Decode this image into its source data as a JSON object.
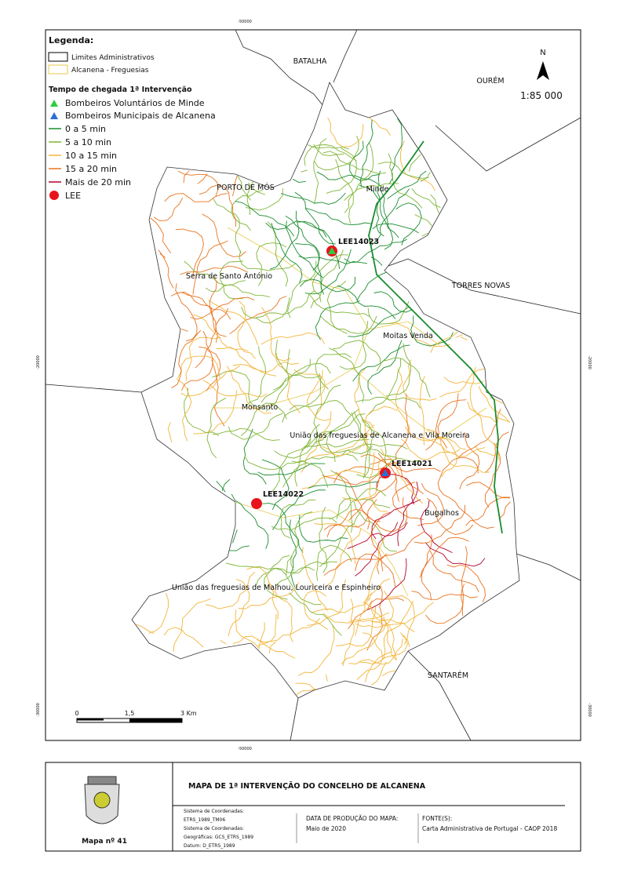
{
  "map": {
    "coordinates": {
      "top": "-50000",
      "bottom": "-50000",
      "left_upper": "-20000",
      "right_upper": "-20000",
      "left_lower": "-30000",
      "right_lower": "-30000"
    },
    "legend": {
      "title": "Legenda:",
      "boundaries": [
        "Limites Administrativos",
        "Alcanena - Freguesias"
      ],
      "section": "Tempo de chegada 1ª Intervenção",
      "stations": [
        "Bombeiros Voluntários de Minde",
        "Bombeiros Municipais de Alcanena"
      ],
      "classes": [
        "0 a 5 min",
        "5 a 10 min",
        "10 a 15 min",
        "15 a 20 min",
        "Mais de 20 min"
      ],
      "lee": "LEE"
    },
    "north": "N",
    "scale": "1:85 000",
    "scale_bar": [
      "0",
      "1,5",
      "3 Km"
    ],
    "places": [
      "BATALHA",
      "OURÉM",
      "PORTO DE MÓS",
      "Minde",
      "Serra de Santo António",
      "TORRES NOVAS",
      "Moitas Venda",
      "Monsanto",
      "União das freguesias de Alcanena e Vila Moreira",
      "Bugalhos",
      "União das freguesias de Malhou, Louriceira e Espinheiro",
      "SANTARÉM"
    ],
    "lee_points": [
      "LEE14023",
      "LEE14021",
      "LEE14022"
    ]
  },
  "footer": {
    "map_number": "Mapa nº 41",
    "title": "MAPA DE 1ª INTERVENÇÃO DO CONCELHO DE ALCANENA",
    "system": [
      "Sistema de Coordenadas:",
      "ETRS_1989_TM06",
      "Sistema de Coordenadas:",
      "Geográficas: GCS_ETRS_1989",
      "Datum: D_ETRS_1989"
    ],
    "date_header": "DATA DE PRODUÇÃO DO MAPA:",
    "date": "Maio de 2020",
    "source_header": "FONTE(S):",
    "source": "Carta Administrativa de Portugal - CAOP 2018"
  }
}
